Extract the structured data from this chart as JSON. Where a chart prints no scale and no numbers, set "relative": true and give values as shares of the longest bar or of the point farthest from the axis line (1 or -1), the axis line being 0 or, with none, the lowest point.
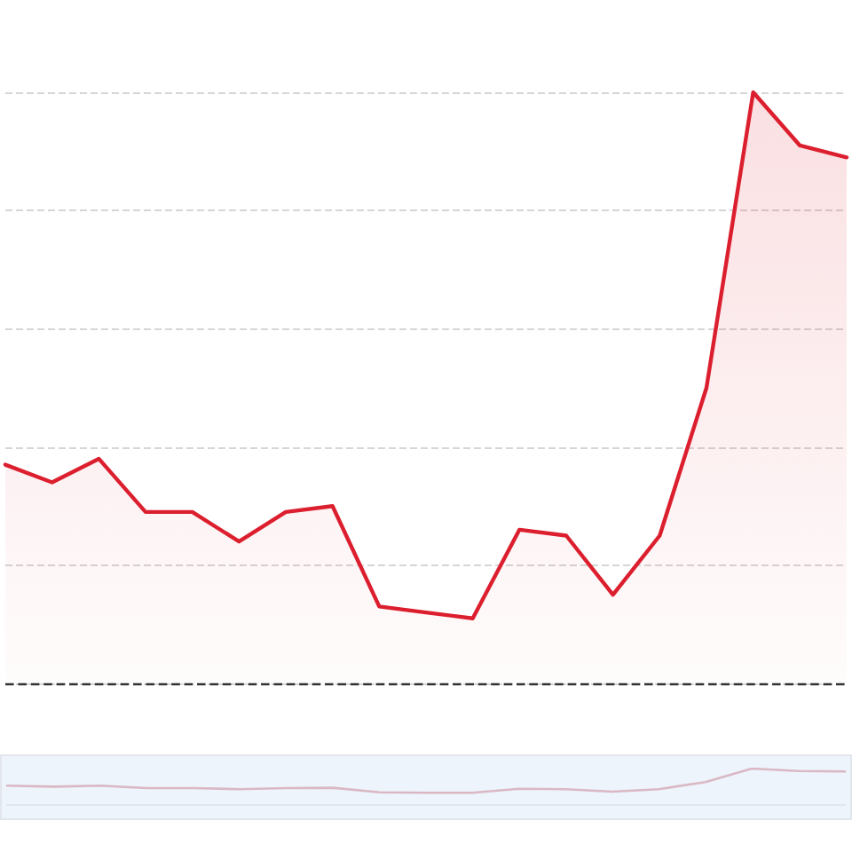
{
  "chart_data": [
    {
      "type": "area",
      "relative": true,
      "categories": [
        null,
        null,
        null,
        null,
        null,
        null,
        null,
        null,
        null,
        null,
        null,
        null,
        null,
        null,
        null,
        null,
        null,
        null,
        null
      ],
      "values": [
        0.37,
        0.34,
        0.38,
        0.29,
        0.29,
        0.24,
        0.29,
        0.3,
        0.13,
        0.12,
        0.11,
        0.26,
        0.25,
        0.15,
        0.25,
        0.5,
        1,
        0.91,
        0.89
      ],
      "color": "#dc1f2e",
      "grid": "y",
      "marker": "none",
      "ref_lines": [
        {
          "axis": "y",
          "value": 0,
          "color": "#333333",
          "line_style": "dashed"
        }
      ]
    },
    {
      "type": "line",
      "relative": true,
      "categories": [
        null,
        null,
        null,
        null,
        null,
        null,
        null,
        null,
        null,
        null,
        null,
        null,
        null,
        null,
        null,
        null,
        null,
        null,
        null
      ],
      "values": [
        0.52,
        0.49,
        0.52,
        0.45,
        0.45,
        0.42,
        0.45,
        0.46,
        0.33,
        0.32,
        0.32,
        0.43,
        0.42,
        0.35,
        0.42,
        0.62,
        1,
        0.93,
        0.92
      ],
      "color": "#d9b8c4",
      "marker": "none"
    }
  ]
}
